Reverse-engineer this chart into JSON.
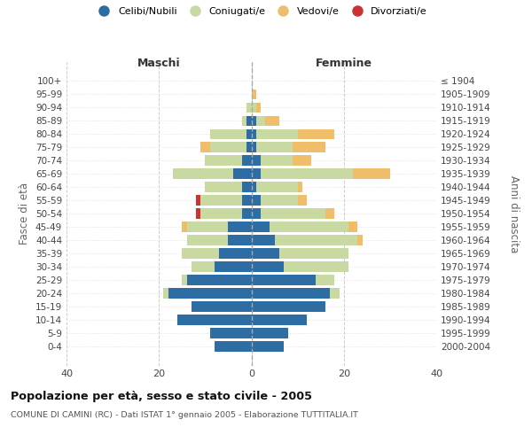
{
  "age_groups": [
    "100+",
    "95-99",
    "90-94",
    "85-89",
    "80-84",
    "75-79",
    "70-74",
    "65-69",
    "60-64",
    "55-59",
    "50-54",
    "45-49",
    "40-44",
    "35-39",
    "30-34",
    "25-29",
    "20-24",
    "15-19",
    "10-14",
    "5-9",
    "0-4"
  ],
  "birth_years": [
    "≤ 1904",
    "1905-1909",
    "1910-1914",
    "1915-1919",
    "1920-1924",
    "1925-1929",
    "1930-1934",
    "1935-1939",
    "1940-1944",
    "1945-1949",
    "1950-1954",
    "1955-1959",
    "1960-1964",
    "1965-1969",
    "1970-1974",
    "1975-1979",
    "1980-1984",
    "1985-1989",
    "1990-1994",
    "1995-1999",
    "2000-2004"
  ],
  "maschi_celibi": [
    0,
    0,
    0,
    1,
    1,
    1,
    2,
    4,
    2,
    2,
    2,
    5,
    5,
    7,
    8,
    14,
    18,
    13,
    16,
    9,
    8
  ],
  "maschi_coniugati": [
    0,
    0,
    1,
    1,
    8,
    8,
    8,
    13,
    8,
    9,
    9,
    9,
    9,
    8,
    5,
    1,
    1,
    0,
    0,
    0,
    0
  ],
  "maschi_vedovi": [
    0,
    0,
    0,
    0,
    0,
    2,
    0,
    0,
    0,
    0,
    0,
    1,
    0,
    0,
    0,
    0,
    0,
    0,
    0,
    0,
    0
  ],
  "maschi_divorziati": [
    0,
    0,
    0,
    0,
    0,
    0,
    0,
    0,
    0,
    1,
    1,
    0,
    0,
    0,
    0,
    0,
    0,
    0,
    0,
    0,
    0
  ],
  "femmine_nubili": [
    0,
    0,
    0,
    1,
    1,
    1,
    2,
    2,
    1,
    2,
    2,
    4,
    5,
    6,
    7,
    14,
    17,
    16,
    12,
    8,
    7
  ],
  "femmine_coniugate": [
    0,
    0,
    1,
    2,
    9,
    8,
    7,
    20,
    9,
    8,
    14,
    17,
    18,
    15,
    14,
    4,
    2,
    0,
    0,
    0,
    0
  ],
  "femmine_vedove": [
    0,
    1,
    1,
    3,
    8,
    7,
    4,
    8,
    1,
    2,
    2,
    2,
    1,
    0,
    0,
    0,
    0,
    0,
    0,
    0,
    0
  ],
  "femmine_divorziate": [
    0,
    0,
    0,
    0,
    0,
    0,
    0,
    0,
    0,
    0,
    0,
    0,
    0,
    0,
    0,
    0,
    0,
    0,
    0,
    0,
    0
  ],
  "color_celibi": "#2e6da4",
  "color_coniugati": "#c8d9a2",
  "color_vedovi": "#f0be6a",
  "color_divorziati": "#cc3333",
  "bg_color": "#ffffff",
  "xlim": 40,
  "title": "Popolazione per età, sesso e stato civile - 2005",
  "subtitle": "COMUNE DI CAMINI (RC) - Dati ISTAT 1° gennaio 2005 - Elaborazione TUTTITALIA.IT",
  "ylabel_left": "Fasce di età",
  "ylabel_right": "Anni di nascita",
  "header_maschi": "Maschi",
  "header_femmine": "Femmine",
  "legend_labels": [
    "Celibi/Nubili",
    "Coniugati/e",
    "Vedovi/e",
    "Divorziati/e"
  ]
}
